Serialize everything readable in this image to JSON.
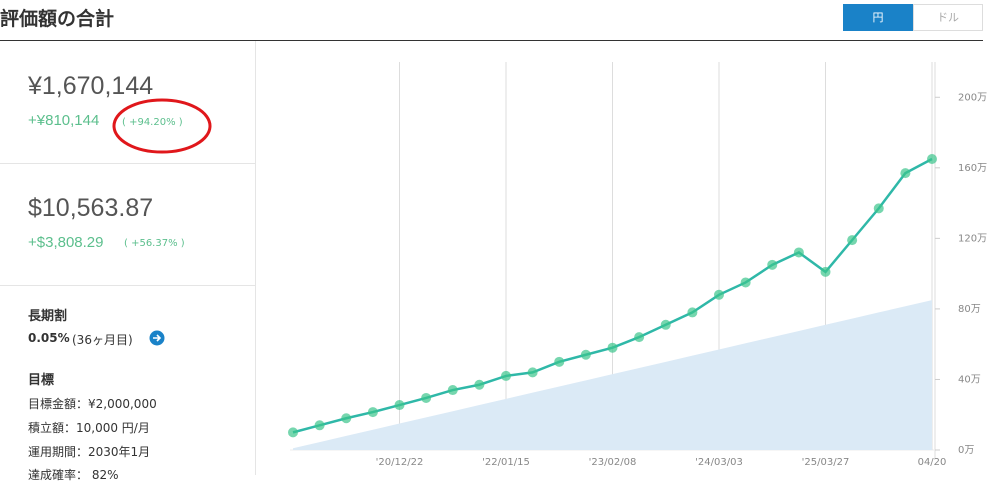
{
  "header": {
    "title": "評価額の合計",
    "toggle": [
      "円",
      "ドル"
    ]
  },
  "summary": {
    "yen": {
      "total": "¥1,670,144",
      "gain": "+¥810,144",
      "rate": "( +94.20% )"
    },
    "usd": {
      "total": "$10,563.87",
      "gain": "+$3,808.29",
      "rate": "( +56.37% )"
    },
    "discount": {
      "label": "長期割",
      "value": "0.05%",
      "months": "(36ヶ月目)"
    },
    "goal": {
      "label": "目標",
      "amount": "目標金額：¥2,000,000",
      "monthly": "積立額：10,000 円/月",
      "period": "運用期間：2030年1月",
      "probability": "達成確率： 82%"
    }
  },
  "chart_data": {
    "type": "line",
    "categories": [
      null,
      null,
      null,
      null,
      "'20/12/22",
      null,
      null,
      null,
      "'22/01/15",
      null,
      null,
      null,
      "'23/02/08",
      null,
      null,
      null,
      "'24/03/03",
      null,
      null,
      null,
      "'25/03/27",
      null,
      null,
      null,
      "04/20"
    ],
    "series": [
      {
        "color": "#2fb8a8",
        "marker_color": "#3cc48c",
        "values": [
          10,
          14,
          18,
          21.5,
          25.5,
          29.5,
          34,
          37,
          42,
          44,
          50,
          54,
          58,
          64,
          71,
          78,
          88,
          95,
          105,
          112,
          101,
          119,
          137,
          157,
          165
        ]
      },
      {
        "color": "#dbeaf6",
        "area": true,
        "values": [
          1,
          4.5,
          8,
          11.5,
          15,
          18.5,
          22,
          25.5,
          29,
          32.5,
          36,
          39.5,
          43,
          46.5,
          50,
          53.5,
          57,
          60.5,
          64,
          67.5,
          71,
          74.5,
          78,
          81.5,
          85
        ]
      }
    ],
    "ylim": [
      0,
      220
    ],
    "yticks": [
      {
        "value": 0,
        "label": "0万"
      },
      {
        "value": 40,
        "label": "40万"
      },
      {
        "value": 80,
        "label": "80万"
      },
      {
        "value": 120,
        "label": "120万"
      },
      {
        "value": 160,
        "label": "160万"
      },
      {
        "value": 200,
        "label": "200万"
      }
    ],
    "grid": true
  }
}
